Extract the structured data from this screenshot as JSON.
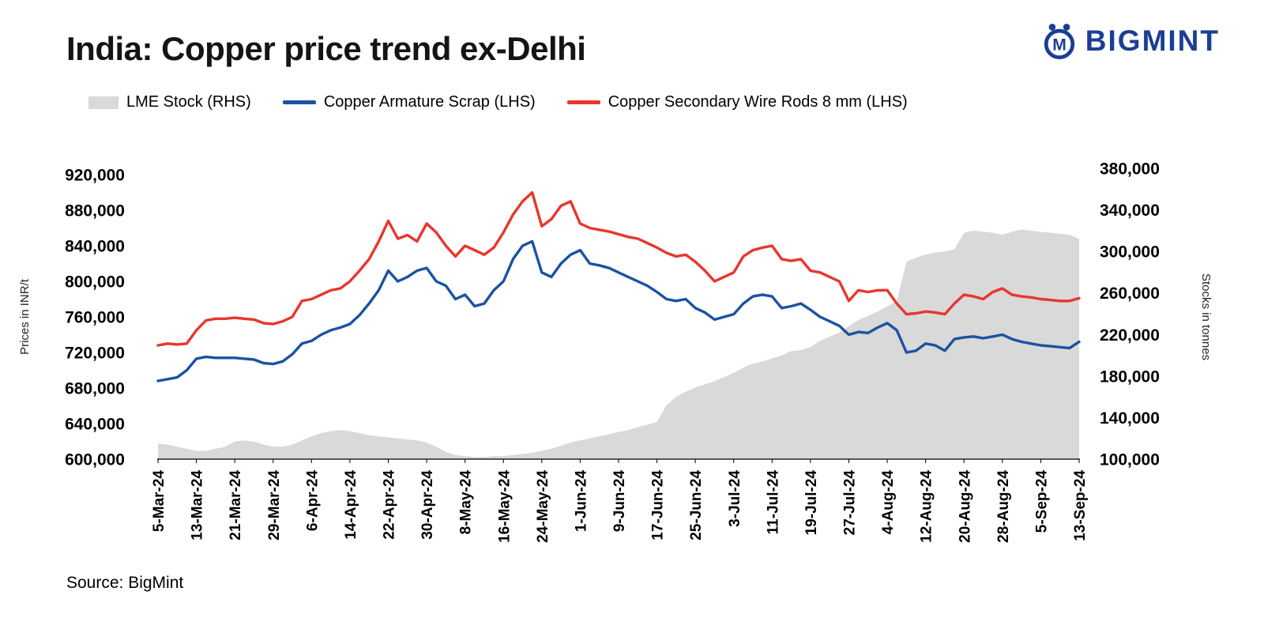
{
  "header": {
    "title": "India: Copper price trend ex-Delhi"
  },
  "logo": {
    "text": "BIGMINT",
    "color": "#1b3e94"
  },
  "source": {
    "text": "Source: BigMint"
  },
  "chart_data": {
    "type": "combo",
    "title": "India: Copper price trend ex-Delhi",
    "legend_position": "top",
    "grid": "off",
    "x_tick_every": 4,
    "x_tick_labels": [
      "5-Mar-24",
      "13-Mar-24",
      "21-Mar-24",
      "29-Mar-24",
      "6-Apr-24",
      "14-Apr-24",
      "22-Apr-24",
      "30-Apr-24",
      "8-May-24",
      "16-May-24",
      "24-May-24",
      "1-Jun-24",
      "9-Jun-24",
      "17-Jun-24",
      "25-Jun-24",
      "3-Jul-24",
      "11-Jul-24",
      "19-Jul-24",
      "27-Jul-24",
      "4-Aug-24",
      "12-Aug-24",
      "20-Aug-24",
      "28-Aug-24",
      "5-Sep-24",
      "13-Sep-24"
    ],
    "left_axis": {
      "label": "Prices in INR/t",
      "min": 600000,
      "max": 920000,
      "tick_step": 40000
    },
    "right_axis": {
      "label": "Stocks in tonnes",
      "min": 100000,
      "max": 380000,
      "tick_step": 40000
    },
    "series": [
      {
        "id": "lme-stock",
        "name": "LME Stock (RHS)",
        "type": "area",
        "axis": "right",
        "color": "#d9d9d9",
        "values": [
          115000,
          114000,
          112000,
          110000,
          108000,
          108000,
          110000,
          112000,
          117000,
          118000,
          117000,
          114000,
          112000,
          112000,
          114000,
          118000,
          122000,
          125000,
          127000,
          128000,
          127000,
          125000,
          123000,
          122000,
          121000,
          120000,
          119000,
          118000,
          116000,
          112000,
          107000,
          104000,
          103000,
          102000,
          102000,
          103000,
          103000,
          104000,
          105000,
          106000,
          108000,
          110000,
          113000,
          116000,
          118000,
          120000,
          122000,
          124000,
          126000,
          128000,
          131000,
          133000,
          136000,
          152000,
          160000,
          165000,
          169000,
          172000,
          175000,
          179000,
          183000,
          188000,
          192000,
          194000,
          197000,
          200000,
          204000,
          205000,
          208000,
          214000,
          218000,
          222000,
          228000,
          234000,
          238000,
          242000,
          247000,
          252000,
          290000,
          294000,
          297000,
          299000,
          300000,
          302000,
          318000,
          320000,
          319000,
          318000,
          316000,
          319000,
          321000,
          320000,
          319000,
          318000,
          317000,
          316000,
          312000
        ]
      },
      {
        "id": "copper-armature-scrap",
        "name": "Copper Armature Scrap (LHS)",
        "type": "line",
        "axis": "left",
        "color": "#1a53a1",
        "values": [
          688000,
          690000,
          692000,
          700000,
          713000,
          715000,
          714000,
          714000,
          714000,
          713000,
          712000,
          708000,
          707000,
          710000,
          718000,
          730000,
          733000,
          740000,
          745000,
          748000,
          752000,
          762000,
          775000,
          790000,
          812000,
          800000,
          805000,
          812000,
          815000,
          800000,
          795000,
          780000,
          785000,
          772000,
          775000,
          790000,
          800000,
          825000,
          840000,
          845000,
          810000,
          805000,
          820000,
          830000,
          835000,
          820000,
          818000,
          815000,
          810000,
          805000,
          800000,
          795000,
          788000,
          780000,
          778000,
          780000,
          770000,
          765000,
          757000,
          760000,
          763000,
          775000,
          783000,
          785000,
          783000,
          770000,
          772000,
          775000,
          768000,
          760000,
          755000,
          750000,
          740000,
          743000,
          742000,
          748000,
          753000,
          745000,
          720000,
          722000,
          730000,
          728000,
          722000,
          735000,
          737000,
          738000,
          736000,
          738000,
          740000,
          735000,
          732000,
          730000,
          728000,
          727000,
          726000,
          725000,
          732000
        ]
      },
      {
        "id": "copper-secondary-wire-rods",
        "name": "Copper Secondary Wire Rods 8 mm (LHS)",
        "type": "line",
        "axis": "left",
        "color": "#e8362d",
        "values": [
          728000,
          730000,
          729000,
          730000,
          745000,
          756000,
          758000,
          758000,
          759000,
          758000,
          757000,
          753000,
          752000,
          755000,
          760000,
          778000,
          780000,
          785000,
          790000,
          792000,
          800000,
          812000,
          825000,
          845000,
          868000,
          848000,
          852000,
          845000,
          865000,
          855000,
          840000,
          828000,
          840000,
          835000,
          830000,
          838000,
          855000,
          875000,
          890000,
          900000,
          862000,
          870000,
          885000,
          890000,
          865000,
          860000,
          858000,
          856000,
          853000,
          850000,
          848000,
          843000,
          838000,
          832000,
          828000,
          830000,
          822000,
          812000,
          800000,
          805000,
          810000,
          828000,
          835000,
          838000,
          840000,
          825000,
          823000,
          825000,
          812000,
          810000,
          805000,
          800000,
          778000,
          790000,
          788000,
          790000,
          790000,
          775000,
          763000,
          764000,
          766000,
          765000,
          763000,
          775000,
          785000,
          783000,
          780000,
          788000,
          792000,
          785000,
          783000,
          782000,
          780000,
          779000,
          778000,
          778000,
          781000
        ]
      }
    ]
  }
}
